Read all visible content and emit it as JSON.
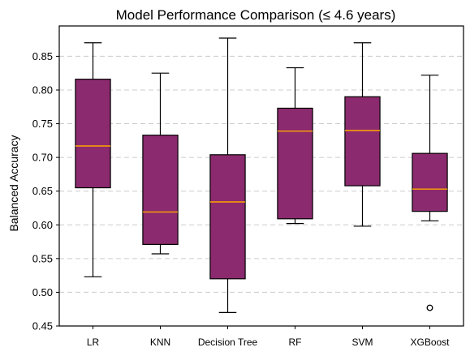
{
  "chart_data": {
    "type": "box",
    "title": "Model Performance Comparison (≤ 4.6 years)",
    "xlabel": "",
    "ylabel": "Balanced Accuracy",
    "ylim": [
      0.45,
      0.895
    ],
    "yticks": [
      0.45,
      0.5,
      0.55,
      0.6,
      0.65,
      0.7,
      0.75,
      0.8,
      0.85
    ],
    "ytick_labels": [
      "0.45",
      "0.50",
      "0.55",
      "0.60",
      "0.65",
      "0.70",
      "0.75",
      "0.80",
      "0.85"
    ],
    "grid": "y-dashed",
    "box_color": "#8B2A6E",
    "median_color": "#FFA500",
    "categories": [
      "LR",
      "KNN",
      "Decision Tree",
      "RF",
      "SVM",
      "XGBoost"
    ],
    "boxes": [
      {
        "label": "LR",
        "whisker_low": 0.523,
        "q1": 0.655,
        "median": 0.717,
        "q3": 0.816,
        "whisker_high": 0.87,
        "outliers": []
      },
      {
        "label": "KNN",
        "whisker_low": 0.557,
        "q1": 0.571,
        "median": 0.619,
        "q3": 0.733,
        "whisker_high": 0.825,
        "outliers": []
      },
      {
        "label": "Decision Tree",
        "whisker_low": 0.47,
        "q1": 0.52,
        "median": 0.634,
        "q3": 0.704,
        "whisker_high": 0.877,
        "outliers": []
      },
      {
        "label": "RF",
        "whisker_low": 0.602,
        "q1": 0.609,
        "median": 0.739,
        "q3": 0.773,
        "whisker_high": 0.833,
        "outliers": []
      },
      {
        "label": "SVM",
        "whisker_low": 0.598,
        "q1": 0.658,
        "median": 0.74,
        "q3": 0.79,
        "whisker_high": 0.87,
        "outliers": []
      },
      {
        "label": "XGBoost",
        "whisker_low": 0.606,
        "q1": 0.62,
        "median": 0.653,
        "q3": 0.706,
        "whisker_high": 0.822,
        "outliers": [
          0.477
        ]
      }
    ]
  }
}
